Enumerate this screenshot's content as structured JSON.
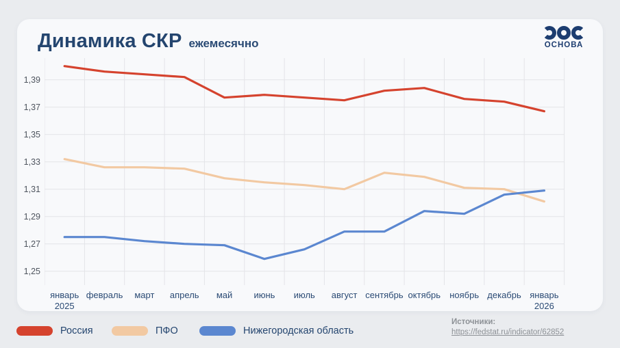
{
  "header": {
    "title": "Динамика СКР",
    "subtitle": "ежемесячно"
  },
  "logo": {
    "text": "ОСНОВА",
    "color": "#1d3d70"
  },
  "chart_data": {
    "type": "line",
    "categories": [
      {
        "label": "январь",
        "sub": "2025"
      },
      {
        "label": "февраль",
        "sub": ""
      },
      {
        "label": "март",
        "sub": ""
      },
      {
        "label": "апрель",
        "sub": ""
      },
      {
        "label": "май",
        "sub": ""
      },
      {
        "label": "июнь",
        "sub": ""
      },
      {
        "label": "июль",
        "sub": ""
      },
      {
        "label": "август",
        "sub": ""
      },
      {
        "label": "сентябрь",
        "sub": ""
      },
      {
        "label": "октябрь",
        "sub": ""
      },
      {
        "label": "ноябрь",
        "sub": ""
      },
      {
        "label": "декабрь",
        "sub": ""
      },
      {
        "label": "январь",
        "sub": "2026"
      }
    ],
    "y_ticks": [
      {
        "v": 1.39,
        "label": "1,39"
      },
      {
        "v": 1.37,
        "label": "1,37"
      },
      {
        "v": 1.35,
        "label": "1,35"
      },
      {
        "v": 1.33,
        "label": "1,33"
      },
      {
        "v": 1.31,
        "label": "1,31"
      },
      {
        "v": 1.29,
        "label": "1,29"
      },
      {
        "v": 1.27,
        "label": "1,27"
      },
      {
        "v": 1.25,
        "label": "1,25"
      }
    ],
    "ylim": [
      1.241,
      1.406
    ],
    "grid": true,
    "legend_position": "bottom",
    "gridline_color": "#e3e4e8",
    "series": [
      {
        "name": "Россия",
        "color": "#d5432e",
        "values": [
          1.4,
          1.396,
          1.394,
          1.392,
          1.377,
          1.379,
          1.377,
          1.375,
          1.382,
          1.384,
          1.376,
          1.374,
          1.367
        ]
      },
      {
        "name": "ПФО",
        "color": "#f2c9a2",
        "values": [
          1.332,
          1.326,
          1.326,
          1.325,
          1.318,
          1.315,
          1.313,
          1.31,
          1.322,
          1.319,
          1.311,
          1.31,
          1.301
        ]
      },
      {
        "name": "Нижегородская область",
        "color": "#5b87d0",
        "values": [
          1.275,
          1.275,
          1.272,
          1.27,
          1.269,
          1.259,
          1.266,
          1.279,
          1.279,
          1.294,
          1.292,
          1.306,
          1.309
        ]
      }
    ]
  },
  "footer": {
    "sources_label": "Источники:",
    "source_link": "https://fedstat.ru/indicator/62852"
  }
}
